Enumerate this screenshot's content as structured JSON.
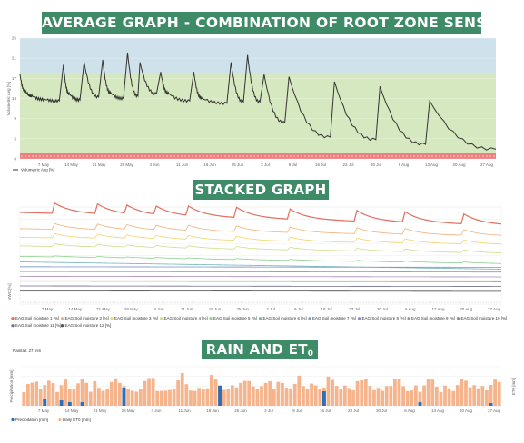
{
  "banners": {
    "average": "AVERAGE GRAPH - COMBINATION OF ROOT ZONE SENSORS",
    "stacked": "STACKED GRAPH",
    "rain_prefix": "RAIN AND ET",
    "rain_sub": "0"
  },
  "chart_data": [
    {
      "type": "line",
      "ylabel": "Volumetric Avg [%]",
      "ylim": [
        0,
        25
      ],
      "yticks": [
        "0",
        "5",
        "9",
        "13",
        "17",
        "21",
        "25"
      ],
      "x_ticks": [
        "7 May",
        "14 May",
        "21 May",
        "28 May",
        "4 Jun",
        "11 Jun",
        "18 Jun",
        "25 Jun",
        "2 Jul",
        "9 Jul",
        "16 Jul",
        "23 Jul",
        "30 Jul",
        "6 Aug",
        "13 Aug",
        "20 Aug",
        "27 Aug"
      ],
      "bands": [
        {
          "from": 17.5,
          "to": 25,
          "color": "#cfe2ec"
        },
        {
          "from": 1.2,
          "to": 17.5,
          "color": "#d6e8bf"
        },
        {
          "from": 0,
          "to": 1.2,
          "color": "#ef7f7f"
        }
      ],
      "series": [
        {
          "name": "Volumetric Avg [%]",
          "color": "#333333",
          "x": [
            0,
            1.5,
            3,
            6,
            9.5,
            10.5,
            12,
            14.5,
            15.5,
            19,
            20,
            22,
            25,
            26,
            28.5,
            29,
            33,
            34,
            36,
            41,
            42,
            44,
            50,
            51,
            54,
            55,
            58,
            59,
            64,
            65,
            75,
            76,
            86,
            87,
            98,
            99,
            115
          ],
          "y": [
            17.5,
            13.8,
            13.0,
            12.3,
            12.0,
            19.5,
            13.4,
            12.2,
            20.0,
            12.8,
            20.5,
            13.6,
            12.5,
            22.0,
            13.0,
            20.0,
            13.5,
            18.0,
            13.5,
            12.0,
            18.0,
            12.5,
            11.5,
            20.0,
            11.8,
            21.5,
            11.8,
            17.5,
            7.5,
            17.0,
            4.5,
            16.0,
            4.0,
            15.0,
            3.0,
            12.0,
            2.0
          ]
        }
      ]
    },
    {
      "type": "line",
      "ylabel": "VWC [%]",
      "x_ticks": [
        "7 May",
        "14 May",
        "21 May",
        "28 May",
        "4 Jun",
        "11 Jun",
        "18 Jun",
        "25 Jun",
        "2 Jul",
        "9 Jul",
        "16 Jul",
        "23 Jul",
        "30 Jul",
        "6 Aug",
        "13 Aug",
        "20 Aug",
        "27 Aug"
      ],
      "series": [
        {
          "name": "EAG Soil moisture 1 [%]",
          "color": "#e07060"
        },
        {
          "name": "EAG Soil moisture 2 [%]",
          "color": "#f2b07a"
        },
        {
          "name": "EAG Soil moisture 3 [%]",
          "color": "#f1d56a"
        },
        {
          "name": "EAG Soil moisture 4 [%]",
          "color": "#c9df8a"
        },
        {
          "name": "EAG Soil moisture 5 [%]",
          "color": "#8fcf8f"
        },
        {
          "name": "EAG Soil moisture 6 [%]",
          "color": "#74b3b8"
        },
        {
          "name": "EAG Soil moisture 7 [%]",
          "color": "#7f97cc"
        },
        {
          "name": "EAG Soil moisture 8 [%]",
          "color": "#9d86c7"
        },
        {
          "name": "EAG Soil moisture 9 [%]",
          "color": "#a98bb0"
        },
        {
          "name": "EAG Soil moisture 10 [%]",
          "color": "#8d8d8d"
        },
        {
          "name": "EAG Soil moisture 11 [%]",
          "color": "#6f6f8f"
        },
        {
          "name": "EAG Soil moisture 12 [%]",
          "color": "#4f4f4f"
        }
      ]
    },
    {
      "type": "bar",
      "title": "Rainfall: 27 mm",
      "ylabel": "Precipitation [mm]",
      "ylabel2": "ET0 [mm]",
      "x_ticks": [
        "7 May",
        "14 May",
        "21 May",
        "28 May",
        "4 Jun",
        "11 Jun",
        "18 Jun",
        "25 Jun",
        "2 Jul",
        "9 Jul",
        "16 Jul",
        "23 Jul",
        "30 Jul",
        "6 Aug",
        "13 Aug",
        "20 Aug",
        "27 Aug"
      ],
      "series": [
        {
          "name": "Precipitation [mm]",
          "color": "#2e6fb5"
        },
        {
          "name": "Daily ET0 [mm]",
          "color": "#f6b48c"
        }
      ]
    }
  ]
}
